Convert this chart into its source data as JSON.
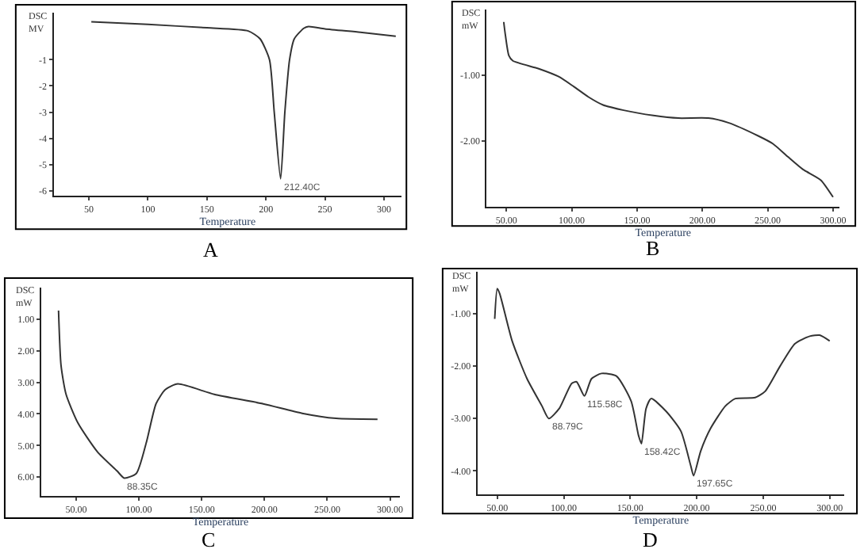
{
  "chart_data": [
    {
      "type": "line",
      "xlabel": "Temperature",
      "ylabel": "DSC MV",
      "xlim": [
        20,
        315
      ],
      "ylim": [
        -6.2,
        0.8
      ],
      "xticks": [
        50,
        100,
        150,
        200,
        250,
        300
      ],
      "yticks": [
        -1,
        -2,
        -3,
        -4,
        -5,
        -6
      ],
      "x": [
        52,
        100,
        150,
        185,
        195,
        203,
        207,
        212.4,
        216,
        220,
        224,
        232,
        236,
        250,
        280,
        310
      ],
      "series": [
        {
          "color": "#333333",
          "values": [
            0.45,
            0.35,
            0.22,
            0.1,
            -0.2,
            -1,
            -3,
            -5.55,
            -3,
            -1,
            -0.2,
            0.2,
            0.27,
            0.18,
            0.05,
            -0.1
          ]
        }
      ],
      "annotations": [
        {
          "text": "212.40C",
          "x": 212.4,
          "y": -5.55
        },
        "A"
      ]
    },
    {
      "type": "line",
      "xlabel": "Temperature",
      "ylabel": "DSC mW",
      "xlim": [
        35,
        305
      ],
      "ylim": [
        -3,
        0
      ],
      "xticks": [
        {
          "value": 50,
          "label": "50.00"
        },
        {
          "value": 100,
          "label": "100.00"
        },
        {
          "value": 150,
          "label": "150.00"
        },
        {
          "value": 200,
          "label": "200.00"
        },
        {
          "value": 250,
          "label": "250.00"
        },
        {
          "value": 300,
          "label": "300.00"
        }
      ],
      "yticks": [
        {
          "value": -1,
          "label": "-1.00"
        },
        {
          "value": -2,
          "label": "-2.00"
        }
      ],
      "x": [
        48,
        49,
        51.9,
        55,
        74.8,
        90,
        101.5,
        112.9,
        124,
        139.7,
        162.6,
        181.7,
        204.6,
        219.8,
        242.7,
        254,
        265.6,
        277,
        290.5,
        300
      ],
      "series": [
        {
          "color": "#333333",
          "values": [
            -0.19,
            -0.35,
            -0.7,
            -0.78,
            -0.9,
            -1.02,
            -1.17,
            -1.33,
            -1.45,
            -1.53,
            -1.61,
            -1.65,
            -1.65,
            -1.72,
            -1.92,
            -2.04,
            -2.24,
            -2.43,
            -2.59,
            -2.85
          ]
        }
      ],
      "annotations": [
        "B"
      ]
    },
    {
      "type": "line",
      "xlabel": "Temperature",
      "ylabel": "DSC mW",
      "xlim": [
        22,
        308
      ],
      "ylim": [
        6.6,
        0
      ],
      "xticks": [
        {
          "value": 50,
          "label": "50.00"
        },
        {
          "value": 100,
          "label": "100.00"
        },
        {
          "value": 150,
          "label": "150.00"
        },
        {
          "value": 200,
          "label": "200.00"
        },
        {
          "value": 250,
          "label": "250.00"
        },
        {
          "value": 300,
          "label": "300.00"
        }
      ],
      "yticks": [
        {
          "value": 1,
          "label": "1.00"
        },
        {
          "value": 2,
          "label": "2.00"
        },
        {
          "value": 3,
          "label": "3.00"
        },
        {
          "value": 4,
          "label": "4.00"
        },
        {
          "value": 5,
          "label": "5.00"
        },
        {
          "value": 6,
          "label": "6.00"
        }
      ],
      "x": [
        36,
        38,
        42,
        51.5,
        67,
        82.5,
        88.35,
        98,
        106,
        113.6,
        121,
        131,
        160,
        199,
        230,
        257,
        290
      ],
      "series": [
        {
          "color": "#333333",
          "values": [
            0.73,
            2.47,
            3.38,
            4.29,
            5.2,
            5.8,
            6.03,
            5.88,
            4.89,
            3.68,
            3.23,
            3.05,
            3.38,
            3.68,
            3.98,
            4.14,
            4.17
          ]
        }
      ],
      "annotations": [
        {
          "text": "88.35C",
          "x": 88.35,
          "y": 6.03
        },
        "C"
      ]
    },
    {
      "type": "line",
      "xlabel": "Temperature",
      "ylabel": "DSC mW",
      "xlim": [
        35,
        311
      ],
      "ylim": [
        -4.45,
        -0.2
      ],
      "xticks": [
        {
          "value": 50,
          "label": "50.00"
        },
        {
          "value": 100,
          "label": "100.00"
        },
        {
          "value": 150,
          "label": "150.00"
        },
        {
          "value": 200,
          "label": "200.00"
        },
        {
          "value": 250,
          "label": "250.00"
        },
        {
          "value": 300,
          "label": "300.00"
        }
      ],
      "yticks": [
        {
          "value": -1,
          "label": "-1.00"
        },
        {
          "value": -2,
          "label": "-2.00"
        },
        {
          "value": -3,
          "label": "-3.00"
        },
        {
          "value": -4,
          "label": "-4.00"
        }
      ],
      "x": [
        48.1,
        50,
        51.9,
        61.2,
        72.4,
        83.6,
        88.79,
        96.6,
        106,
        109.7,
        115.58,
        120.9,
        128.4,
        139.6,
        150.7,
        156.3,
        158.42,
        161.9,
        165.7,
        176.9,
        188.1,
        195.5,
        197.65,
        203,
        210.4,
        221.6,
        229,
        244,
        251.5,
        262.7,
        273.9,
        285,
        292.5,
        300
      ],
      "series": [
        {
          "color": "#333333",
          "values": [
            -1.1,
            -0.52,
            -0.62,
            -1.52,
            -2.24,
            -2.76,
            -3.0,
            -2.81,
            -2.33,
            -2.3,
            -2.57,
            -2.24,
            -2.14,
            -2.19,
            -2.67,
            -3.33,
            -3.48,
            -2.81,
            -2.62,
            -2.86,
            -3.24,
            -3.9,
            -4.09,
            -3.62,
            -3.19,
            -2.76,
            -2.62,
            -2.6,
            -2.48,
            -2.0,
            -1.57,
            -1.43,
            -1.41,
            -1.52
          ]
        }
      ],
      "annotations": [
        {
          "text": "88.79C",
          "x": 88.79,
          "y": -3.0
        },
        {
          "text": "115.58C",
          "x": 115.58,
          "y": -2.57
        },
        {
          "text": "158.42C",
          "x": 158.42,
          "y": -3.48
        },
        {
          "text": "197.65C",
          "x": 197.65,
          "y": -4.09
        },
        "D"
      ]
    }
  ]
}
